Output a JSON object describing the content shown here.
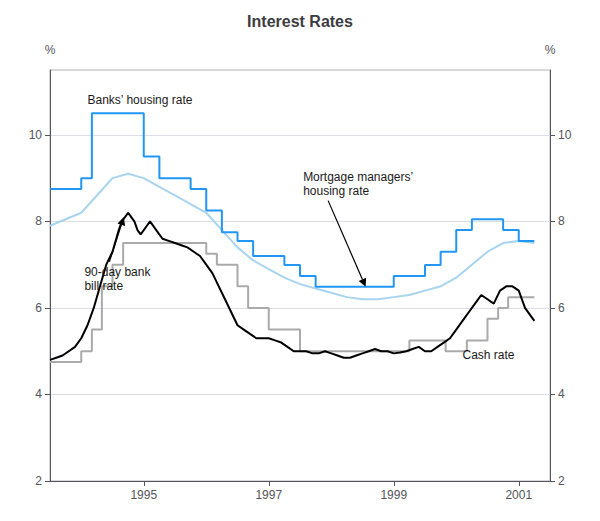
{
  "chart_data": {
    "type": "line",
    "title": "Interest Rates",
    "ylabel": "%",
    "y2label": "%",
    "xlim": [
      1993.5,
      2001.5
    ],
    "xticks": [
      1995,
      1997,
      1999,
      2001
    ],
    "ylim": [
      2,
      11.5
    ],
    "yticks": [
      2,
      4,
      6,
      8,
      10
    ],
    "y2lim": [
      2,
      11.5
    ],
    "y2ticks": [
      2,
      4,
      6,
      8,
      10
    ],
    "grid": true,
    "series": [
      {
        "color": "#a8d4f0",
        "x": [
          1993.5,
          1994.0,
          1994.25,
          1994.5,
          1994.75,
          1995.0,
          1995.25,
          1995.5,
          1995.75,
          1996.0,
          1996.25,
          1996.5,
          1996.75,
          1997.0,
          1997.25,
          1997.5,
          1997.75,
          1998.0,
          1998.25,
          1998.5,
          1998.75,
          1999.0,
          1999.25,
          1999.5,
          1999.75,
          2000.0,
          2000.25,
          2000.5,
          2000.75,
          2001.0,
          2001.25
        ],
        "values": [
          7.9,
          8.2,
          8.6,
          9.0,
          9.1,
          9.0,
          8.8,
          8.6,
          8.4,
          8.2,
          7.8,
          7.4,
          7.1,
          6.9,
          6.7,
          6.55,
          6.45,
          6.35,
          6.25,
          6.2,
          6.2,
          6.25,
          6.3,
          6.4,
          6.5,
          6.7,
          7.0,
          7.3,
          7.5,
          7.55,
          7.5
        ]
      },
      {
        "color": "#2196f3",
        "x": [
          1993.5,
          1993.67,
          1993.67,
          1994.0,
          1994.0,
          1994.17,
          1994.17,
          1994.5,
          1994.5,
          1995.0,
          1995.0,
          1995.25,
          1995.25,
          1995.75,
          1995.75,
          1996.0,
          1996.0,
          1996.25,
          1996.25,
          1996.5,
          1996.5,
          1996.75,
          1996.75,
          1997.0,
          1997.0,
          1997.25,
          1997.25,
          1997.5,
          1997.5,
          1997.75,
          1997.75,
          1998.0,
          1998.0,
          1998.5,
          1998.5,
          1999.0,
          1999.0,
          1999.25,
          1999.25,
          1999.5,
          1999.5,
          1999.75,
          1999.75,
          2000.0,
          2000.0,
          2000.25,
          2000.25,
          2000.5,
          2000.5,
          2000.75,
          2000.75,
          2001.0,
          2001.0,
          2001.25
        ],
        "values": [
          8.75,
          8.75,
          8.75,
          8.75,
          9.0,
          9.0,
          10.5,
          10.5,
          10.5,
          10.5,
          9.5,
          9.5,
          9.0,
          9.0,
          8.75,
          8.75,
          8.25,
          8.25,
          7.75,
          7.75,
          7.55,
          7.55,
          7.2,
          7.2,
          7.2,
          7.2,
          6.99,
          6.99,
          6.74,
          6.74,
          6.49,
          6.49,
          6.49,
          6.49,
          6.49,
          6.49,
          6.74,
          6.74,
          6.74,
          6.74,
          6.99,
          6.99,
          7.3,
          7.3,
          7.8,
          7.8,
          8.05,
          8.05,
          8.05,
          8.05,
          7.8,
          7.8,
          7.55,
          7.55
        ]
      },
      {
        "color": "#aaaaaa",
        "x": [
          1993.5,
          1993.67,
          1993.67,
          1994.0,
          1994.0,
          1994.17,
          1994.17,
          1994.33,
          1994.33,
          1994.5,
          1994.5,
          1994.67,
          1994.67,
          1994.83,
          1994.83,
          1995.0,
          1995.0,
          1995.5,
          1995.5,
          1995.67,
          1995.67,
          1996.0,
          1996.0,
          1996.17,
          1996.17,
          1996.5,
          1996.5,
          1996.67,
          1996.67,
          1997.0,
          1997.0,
          1997.5,
          1997.5,
          1998.0,
          1998.0,
          1999.0,
          1999.0,
          1999.25,
          1999.25,
          1999.83,
          1999.83,
          2000.17,
          2000.17,
          2000.5,
          2000.5,
          2000.67,
          2000.67,
          2000.83,
          2000.83,
          2001.0,
          2001.0,
          2001.25
        ],
        "values": [
          4.75,
          4.75,
          4.75,
          4.75,
          5.0,
          5.0,
          5.5,
          5.5,
          6.5,
          6.5,
          7.0,
          7.0,
          7.5,
          7.5,
          7.5,
          7.5,
          7.5,
          7.5,
          7.5,
          7.5,
          7.5,
          7.5,
          7.25,
          7.25,
          7.0,
          7.0,
          6.5,
          6.5,
          6.0,
          6.0,
          5.5,
          5.5,
          5.0,
          5.0,
          5.0,
          5.0,
          5.0,
          5.0,
          5.25,
          5.25,
          5.0,
          5.0,
          5.25,
          5.25,
          5.75,
          5.75,
          6.0,
          6.0,
          6.25,
          6.25,
          6.25,
          6.25
        ]
      },
      {
        "color": "#000000",
        "x": [
          1993.5,
          1993.6,
          1993.7,
          1993.8,
          1993.9,
          1994.0,
          1994.1,
          1994.2,
          1994.3,
          1994.4,
          1994.5,
          1994.6,
          1994.65,
          1994.7,
          1994.75,
          1994.8,
          1994.85,
          1994.9,
          1994.95,
          1995.0,
          1995.05,
          1995.1,
          1995.2,
          1995.3,
          1995.4,
          1995.5,
          1995.6,
          1995.7,
          1995.8,
          1995.9,
          1996.0,
          1996.1,
          1996.2,
          1996.3,
          1996.4,
          1996.5,
          1996.6,
          1996.7,
          1996.8,
          1996.9,
          1997.0,
          1997.1,
          1997.2,
          1997.3,
          1997.4,
          1997.5,
          1997.6,
          1997.7,
          1997.8,
          1997.9,
          1998.0,
          1998.1,
          1998.2,
          1998.3,
          1998.4,
          1998.5,
          1998.6,
          1998.7,
          1998.8,
          1998.9,
          1999.0,
          1999.1,
          1999.2,
          1999.3,
          1999.4,
          1999.5,
          1999.6,
          1999.7,
          1999.8,
          1999.9,
          2000.0,
          2000.1,
          2000.2,
          2000.3,
          2000.4,
          2000.5,
          2000.6,
          2000.7,
          2000.8,
          2000.9,
          2001.0,
          2001.1,
          2001.2,
          2001.25
        ],
        "values": [
          4.8,
          4.85,
          4.9,
          5.0,
          5.1,
          5.3,
          5.6,
          6.0,
          6.5,
          7.0,
          7.3,
          7.8,
          8.0,
          8.1,
          8.2,
          8.1,
          8.0,
          7.8,
          7.7,
          7.8,
          7.9,
          8.0,
          7.8,
          7.6,
          7.55,
          7.5,
          7.45,
          7.4,
          7.3,
          7.2,
          7.0,
          6.8,
          6.5,
          6.2,
          5.9,
          5.6,
          5.5,
          5.4,
          5.3,
          5.3,
          5.3,
          5.25,
          5.2,
          5.1,
          5.0,
          5.0,
          5.0,
          4.95,
          4.95,
          5.0,
          4.95,
          4.9,
          4.85,
          4.85,
          4.9,
          4.95,
          5.0,
          5.05,
          5.0,
          5.0,
          4.95,
          4.97,
          5.0,
          5.05,
          5.1,
          5.0,
          5.0,
          5.1,
          5.2,
          5.3,
          5.5,
          5.7,
          5.9,
          6.1,
          6.3,
          6.2,
          6.1,
          6.4,
          6.5,
          6.5,
          6.4,
          6.0,
          5.8,
          5.7
        ]
      }
    ],
    "annotations": [
      {
        "text": "Banks’ housing rate",
        "x": 1994.1,
        "y": 10.65
      },
      {
        "text": "Mortgage managers’\nhousing rate",
        "x": 1997.55,
        "y": 8.55,
        "arrow_to": [
          1998.55,
          6.49
        ]
      },
      {
        "text": "90-day bank\nbill rate",
        "x": 1994.05,
        "y": 6.35,
        "arrow_to": [
          1994.68,
          8.1
        ]
      },
      {
        "text": "Cash rate",
        "x": 2000.1,
        "y": 4.75
      }
    ]
  }
}
